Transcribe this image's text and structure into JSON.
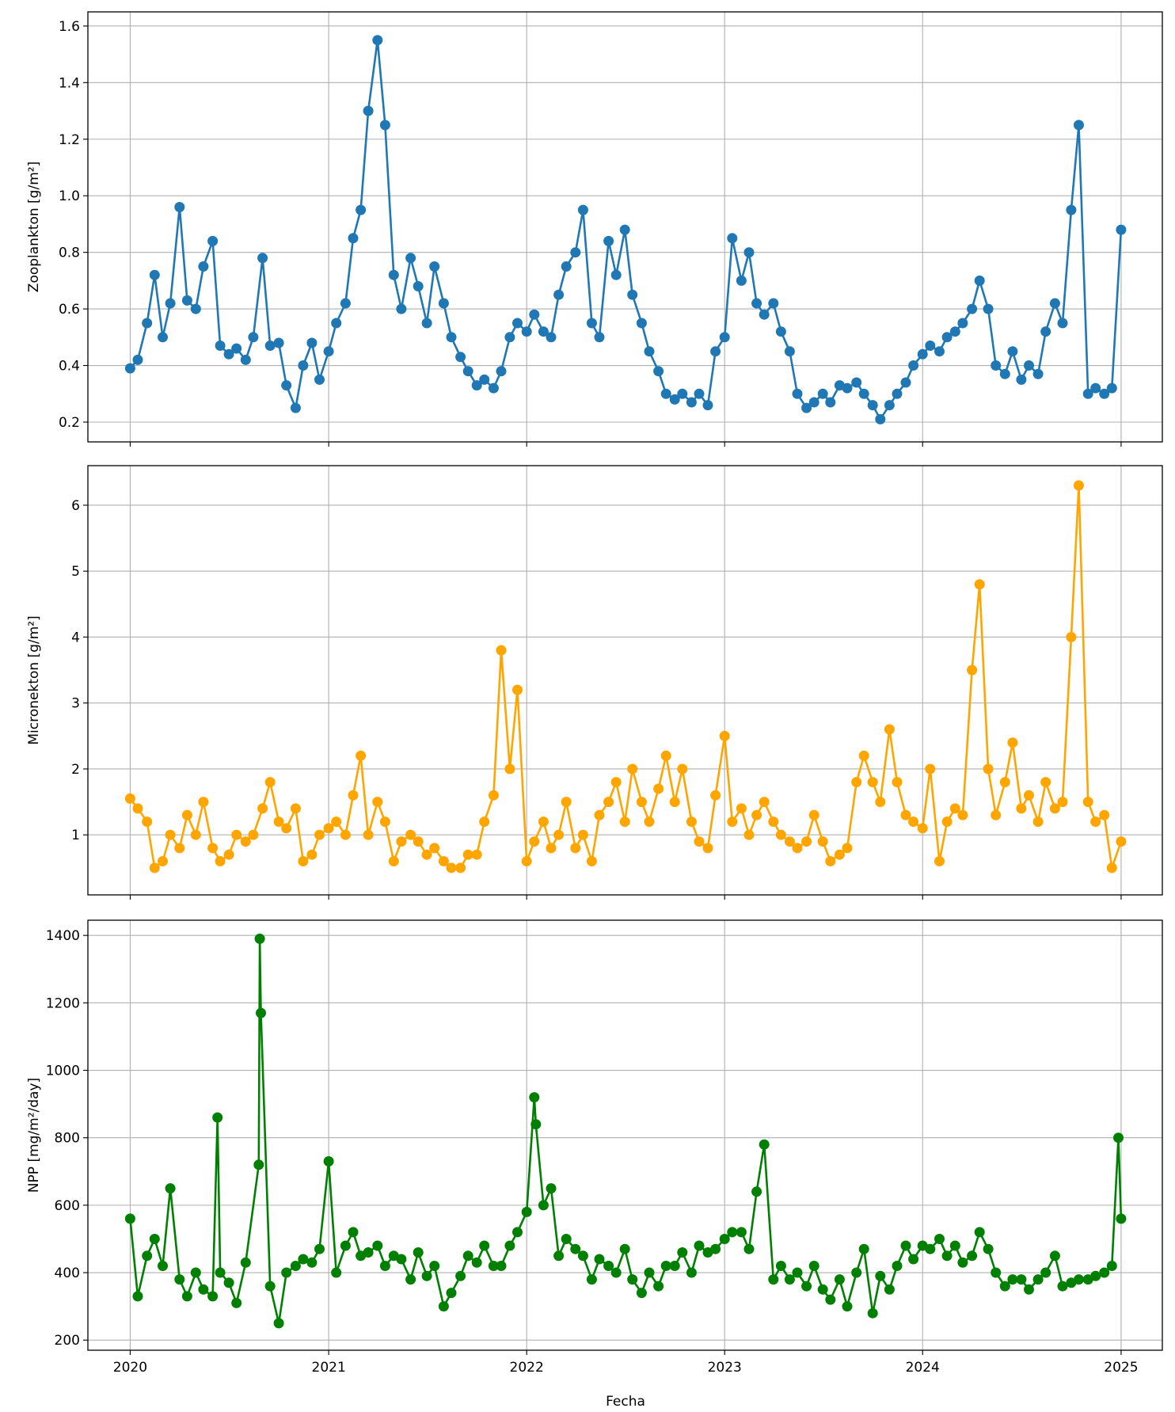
{
  "xlabel": "Fecha",
  "x_ticks": [
    "2020",
    "2021",
    "2022",
    "2023",
    "2024",
    "2025"
  ],
  "chart_data": [
    {
      "type": "line",
      "ylabel": "Zooplankton [g/m²]",
      "color": "#1f77b4",
      "xlim": [
        "2019-10-15",
        "2025-03-18"
      ],
      "ylim": [
        0.13,
        1.65
      ],
      "y_ticks": [
        "0.2",
        "0.4",
        "0.6",
        "0.8",
        "1.0",
        "1.2",
        "1.4",
        "1.6"
      ],
      "grid": true,
      "marker": "circle",
      "series": [
        {
          "x": [
            "2020-01-01",
            "2020-01-15",
            "2020-02-01",
            "2020-02-15",
            "2020-03-01",
            "2020-03-15",
            "2020-04-01",
            "2020-04-15",
            "2020-05-01",
            "2020-05-15",
            "2020-06-01",
            "2020-06-15",
            "2020-07-01",
            "2020-07-15",
            "2020-08-01",
            "2020-08-15",
            "2020-09-01",
            "2020-09-15",
            "2020-10-01",
            "2020-10-15",
            "2020-11-01",
            "2020-11-15",
            "2020-12-01",
            "2020-12-15",
            "2021-01-01",
            "2021-01-15",
            "2021-02-01",
            "2021-02-15",
            "2021-03-01",
            "2021-03-15",
            "2021-04-01",
            "2021-04-15",
            "2021-05-01",
            "2021-05-15",
            "2021-06-01",
            "2021-06-15",
            "2021-07-01",
            "2021-07-15",
            "2021-08-01",
            "2021-08-15",
            "2021-09-01",
            "2021-09-15",
            "2021-10-01",
            "2021-10-15",
            "2021-11-01",
            "2021-11-15",
            "2021-12-01",
            "2021-12-15",
            "2022-01-01",
            "2022-01-15",
            "2022-02-01",
            "2022-02-15",
            "2022-03-01",
            "2022-03-15",
            "2022-04-01",
            "2022-04-15",
            "2022-05-01",
            "2022-05-15",
            "2022-06-01",
            "2022-06-15",
            "2022-07-01",
            "2022-07-15",
            "2022-08-01",
            "2022-08-15",
            "2022-09-01",
            "2022-09-15",
            "2022-10-01",
            "2022-10-15",
            "2022-11-01",
            "2022-11-15",
            "2022-12-01",
            "2022-12-15",
            "2023-01-01",
            "2023-01-15",
            "2023-02-01",
            "2023-02-15",
            "2023-03-01",
            "2023-03-15",
            "2023-04-01",
            "2023-04-15",
            "2023-05-01",
            "2023-05-15",
            "2023-06-01",
            "2023-06-15",
            "2023-07-01",
            "2023-07-15",
            "2023-08-01",
            "2023-08-15",
            "2023-09-01",
            "2023-09-15",
            "2023-10-01",
            "2023-10-15",
            "2023-11-01",
            "2023-11-15",
            "2023-12-01",
            "2023-12-15",
            "2024-01-01",
            "2024-01-15",
            "2024-02-01",
            "2024-02-15",
            "2024-03-01",
            "2024-03-15",
            "2024-04-01",
            "2024-04-15",
            "2024-05-01",
            "2024-05-15",
            "2024-06-01",
            "2024-06-15",
            "2024-07-01",
            "2024-07-15",
            "2024-08-01",
            "2024-08-15",
            "2024-09-01",
            "2024-09-15",
            "2024-10-01",
            "2024-10-15",
            "2024-11-01",
            "2024-11-15",
            "2024-12-01",
            "2024-12-15",
            "2025-01-01"
          ],
          "y": [
            0.39,
            0.42,
            0.55,
            0.72,
            0.5,
            0.62,
            0.96,
            0.63,
            0.6,
            0.75,
            0.84,
            0.47,
            0.44,
            0.46,
            0.42,
            0.5,
            0.78,
            0.47,
            0.48,
            0.33,
            0.25,
            0.4,
            0.48,
            0.35,
            0.45,
            0.55,
            0.62,
            0.85,
            0.95,
            1.3,
            1.55,
            1.25,
            0.72,
            0.6,
            0.78,
            0.68,
            0.55,
            0.75,
            0.62,
            0.5,
            0.43,
            0.38,
            0.33,
            0.35,
            0.32,
            0.38,
            0.5,
            0.55,
            0.52,
            0.58,
            0.52,
            0.5,
            0.65,
            0.75,
            0.8,
            0.95,
            0.55,
            0.5,
            0.84,
            0.72,
            0.88,
            0.65,
            0.55,
            0.45,
            0.38,
            0.3,
            0.28,
            0.3,
            0.27,
            0.3,
            0.26,
            0.45,
            0.5,
            0.85,
            0.7,
            0.8,
            0.62,
            0.58,
            0.62,
            0.52,
            0.45,
            0.3,
            0.25,
            0.27,
            0.3,
            0.27,
            0.33,
            0.32,
            0.34,
            0.3,
            0.26,
            0.21,
            0.26,
            0.3,
            0.34,
            0.4,
            0.44,
            0.47,
            0.45,
            0.5,
            0.52,
            0.55,
            0.6,
            0.7,
            0.6,
            0.4,
            0.37,
            0.45,
            0.35,
            0.4,
            0.37,
            0.52,
            0.62,
            0.55,
            0.95,
            1.25,
            0.3,
            0.32,
            0.3,
            0.32,
            0.88
          ]
        }
      ]
    },
    {
      "type": "line",
      "ylabel": "Micronekton [g/m²]",
      "color": "#ffa500",
      "xlim": [
        "2019-10-15",
        "2025-03-18"
      ],
      "ylim": [
        0.09,
        6.6
      ],
      "y_ticks": [
        "1",
        "2",
        "3",
        "4",
        "5",
        "6"
      ],
      "grid": true,
      "marker": "circle",
      "series": [
        {
          "x": [
            "2020-01-01",
            "2020-01-15",
            "2020-02-01",
            "2020-02-15",
            "2020-03-01",
            "2020-03-15",
            "2020-04-01",
            "2020-04-15",
            "2020-05-01",
            "2020-05-15",
            "2020-06-01",
            "2020-06-15",
            "2020-07-01",
            "2020-07-15",
            "2020-08-01",
            "2020-08-15",
            "2020-09-01",
            "2020-09-15",
            "2020-10-01",
            "2020-10-15",
            "2020-11-01",
            "2020-11-15",
            "2020-12-01",
            "2020-12-15",
            "2021-01-01",
            "2021-01-15",
            "2021-02-01",
            "2021-02-15",
            "2021-03-01",
            "2021-03-15",
            "2021-04-01",
            "2021-04-15",
            "2021-05-01",
            "2021-05-15",
            "2021-06-01",
            "2021-06-15",
            "2021-07-01",
            "2021-07-15",
            "2021-08-01",
            "2021-08-15",
            "2021-09-01",
            "2021-09-15",
            "2021-10-01",
            "2021-10-15",
            "2021-11-01",
            "2021-11-15",
            "2021-12-01",
            "2021-12-15",
            "2022-01-01",
            "2022-01-15",
            "2022-02-01",
            "2022-02-15",
            "2022-03-01",
            "2022-03-15",
            "2022-04-01",
            "2022-04-15",
            "2022-05-01",
            "2022-05-15",
            "2022-06-01",
            "2022-06-15",
            "2022-07-01",
            "2022-07-15",
            "2022-08-01",
            "2022-08-15",
            "2022-09-01",
            "2022-09-15",
            "2022-10-01",
            "2022-10-15",
            "2022-11-01",
            "2022-11-15",
            "2022-12-01",
            "2022-12-15",
            "2023-01-01",
            "2023-01-15",
            "2023-02-01",
            "2023-02-15",
            "2023-03-01",
            "2023-03-15",
            "2023-04-01",
            "2023-04-15",
            "2023-05-01",
            "2023-05-15",
            "2023-06-01",
            "2023-06-15",
            "2023-07-01",
            "2023-07-15",
            "2023-08-01",
            "2023-08-15",
            "2023-09-01",
            "2023-09-15",
            "2023-10-01",
            "2023-10-15",
            "2023-11-01",
            "2023-11-15",
            "2023-12-01",
            "2023-12-15",
            "2024-01-01",
            "2024-01-15",
            "2024-02-01",
            "2024-02-15",
            "2024-03-01",
            "2024-03-15",
            "2024-04-01",
            "2024-04-15",
            "2024-05-01",
            "2024-05-15",
            "2024-06-01",
            "2024-06-15",
            "2024-07-01",
            "2024-07-15",
            "2024-08-01",
            "2024-08-15",
            "2024-09-01",
            "2024-09-15",
            "2024-10-01",
            "2024-10-15",
            "2024-11-01",
            "2024-11-15",
            "2024-12-01",
            "2024-12-15",
            "2025-01-01"
          ],
          "y": [
            1.55,
            1.4,
            1.2,
            0.5,
            0.6,
            1.0,
            0.8,
            1.3,
            1.0,
            1.5,
            0.8,
            0.6,
            0.7,
            1.0,
            0.9,
            1.0,
            1.4,
            1.8,
            1.2,
            1.1,
            1.4,
            0.6,
            0.7,
            1.0,
            1.1,
            1.2,
            1.0,
            1.6,
            2.2,
            1.0,
            1.5,
            1.2,
            0.6,
            0.9,
            1.0,
            0.9,
            0.7,
            0.8,
            0.6,
            0.5,
            0.5,
            0.7,
            0.7,
            1.2,
            1.6,
            3.8,
            2.0,
            3.2,
            0.6,
            0.9,
            1.2,
            0.8,
            1.0,
            1.5,
            0.8,
            1.0,
            0.6,
            1.3,
            1.5,
            1.8,
            1.2,
            2.0,
            1.5,
            1.2,
            1.7,
            2.2,
            1.5,
            2.0,
            1.2,
            0.9,
            0.8,
            1.6,
            2.5,
            1.2,
            1.4,
            1.0,
            1.3,
            1.5,
            1.2,
            1.0,
            0.9,
            0.8,
            0.9,
            1.3,
            0.9,
            0.6,
            0.7,
            0.8,
            1.8,
            2.2,
            1.8,
            1.5,
            2.6,
            1.8,
            1.3,
            1.2,
            1.1,
            2.0,
            0.6,
            1.2,
            1.4,
            1.3,
            3.5,
            4.8,
            2.0,
            1.3,
            1.8,
            2.4,
            1.4,
            1.6,
            1.2,
            1.8,
            1.4,
            1.5,
            4.0,
            6.3,
            1.5,
            1.2,
            1.3,
            0.5,
            0.9
          ]
        }
      ]
    },
    {
      "type": "line",
      "ylabel": "NPP [mg/m²/day]",
      "color": "#008000",
      "xlim": [
        "2019-10-15",
        "2025-03-18"
      ],
      "ylim": [
        170,
        1445
      ],
      "y_ticks": [
        "200",
        "400",
        "600",
        "800",
        "1000",
        "1200",
        "1400"
      ],
      "grid": true,
      "marker": "circle",
      "series": [
        {
          "x": [
            "2020-01-01",
            "2020-01-15",
            "2020-02-01",
            "2020-02-15",
            "2020-03-01",
            "2020-03-15",
            "2020-04-01",
            "2020-04-15",
            "2020-05-01",
            "2020-05-15",
            "2020-06-01",
            "2020-06-10",
            "2020-06-15",
            "2020-07-01",
            "2020-07-15",
            "2020-08-01",
            "2020-08-25",
            "2020-08-27",
            "2020-08-29",
            "2020-09-15",
            "2020-10-01",
            "2020-10-15",
            "2020-11-01",
            "2020-11-15",
            "2020-12-01",
            "2020-12-15",
            "2021-01-01",
            "2021-01-15",
            "2021-02-01",
            "2021-02-15",
            "2021-03-01",
            "2021-03-15",
            "2021-04-01",
            "2021-04-15",
            "2021-05-01",
            "2021-05-15",
            "2021-06-01",
            "2021-06-15",
            "2021-07-01",
            "2021-07-15",
            "2021-08-01",
            "2021-08-15",
            "2021-09-01",
            "2021-09-15",
            "2021-10-01",
            "2021-10-15",
            "2021-11-01",
            "2021-11-15",
            "2021-12-01",
            "2021-12-15",
            "2022-01-01",
            "2022-01-15",
            "2022-01-18",
            "2022-02-01",
            "2022-02-15",
            "2022-03-01",
            "2022-03-15",
            "2022-04-01",
            "2022-04-15",
            "2022-05-01",
            "2022-05-15",
            "2022-06-01",
            "2022-06-15",
            "2022-07-01",
            "2022-07-15",
            "2022-08-01",
            "2022-08-15",
            "2022-09-01",
            "2022-09-15",
            "2022-10-01",
            "2022-10-15",
            "2022-11-01",
            "2022-11-15",
            "2022-12-01",
            "2022-12-15",
            "2023-01-01",
            "2023-01-15",
            "2023-02-01",
            "2023-02-15",
            "2023-03-01",
            "2023-03-15",
            "2023-04-01",
            "2023-04-15",
            "2023-05-01",
            "2023-05-15",
            "2023-06-01",
            "2023-06-15",
            "2023-07-01",
            "2023-07-15",
            "2023-08-01",
            "2023-08-15",
            "2023-09-01",
            "2023-09-15",
            "2023-10-01",
            "2023-10-15",
            "2023-11-01",
            "2023-11-15",
            "2023-12-01",
            "2023-12-15",
            "2024-01-01",
            "2024-01-15",
            "2024-02-01",
            "2024-02-15",
            "2024-03-01",
            "2024-03-15",
            "2024-04-01",
            "2024-04-15",
            "2024-05-01",
            "2024-05-15",
            "2024-06-01",
            "2024-06-15",
            "2024-07-01",
            "2024-07-15",
            "2024-08-01",
            "2024-08-15",
            "2024-09-01",
            "2024-09-15",
            "2024-10-01",
            "2024-10-15",
            "2024-11-01",
            "2024-11-15",
            "2024-12-01",
            "2024-12-15",
            "2024-12-27",
            "2025-01-01"
          ],
          "y": [
            560,
            330,
            450,
            500,
            420,
            650,
            380,
            330,
            400,
            350,
            330,
            860,
            400,
            370,
            310,
            430,
            720,
            1390,
            1170,
            360,
            250,
            400,
            420,
            440,
            430,
            470,
            730,
            400,
            480,
            520,
            450,
            460,
            480,
            420,
            450,
            440,
            380,
            460,
            390,
            420,
            300,
            340,
            390,
            450,
            430,
            480,
            420,
            420,
            480,
            520,
            580,
            920,
            840,
            600,
            650,
            450,
            500,
            470,
            450,
            380,
            440,
            420,
            400,
            470,
            380,
            340,
            400,
            360,
            420,
            420,
            460,
            400,
            480,
            460,
            470,
            500,
            520,
            520,
            470,
            640,
            780,
            380,
            420,
            380,
            400,
            360,
            420,
            350,
            320,
            380,
            300,
            400,
            470,
            280,
            390,
            350,
            420,
            480,
            440,
            480,
            470,
            500,
            450,
            480,
            430,
            450,
            520,
            470,
            400,
            360,
            380,
            380,
            350,
            380,
            400,
            450,
            360,
            370,
            380,
            380,
            390,
            400,
            420,
            800,
            560
          ]
        }
      ]
    }
  ]
}
